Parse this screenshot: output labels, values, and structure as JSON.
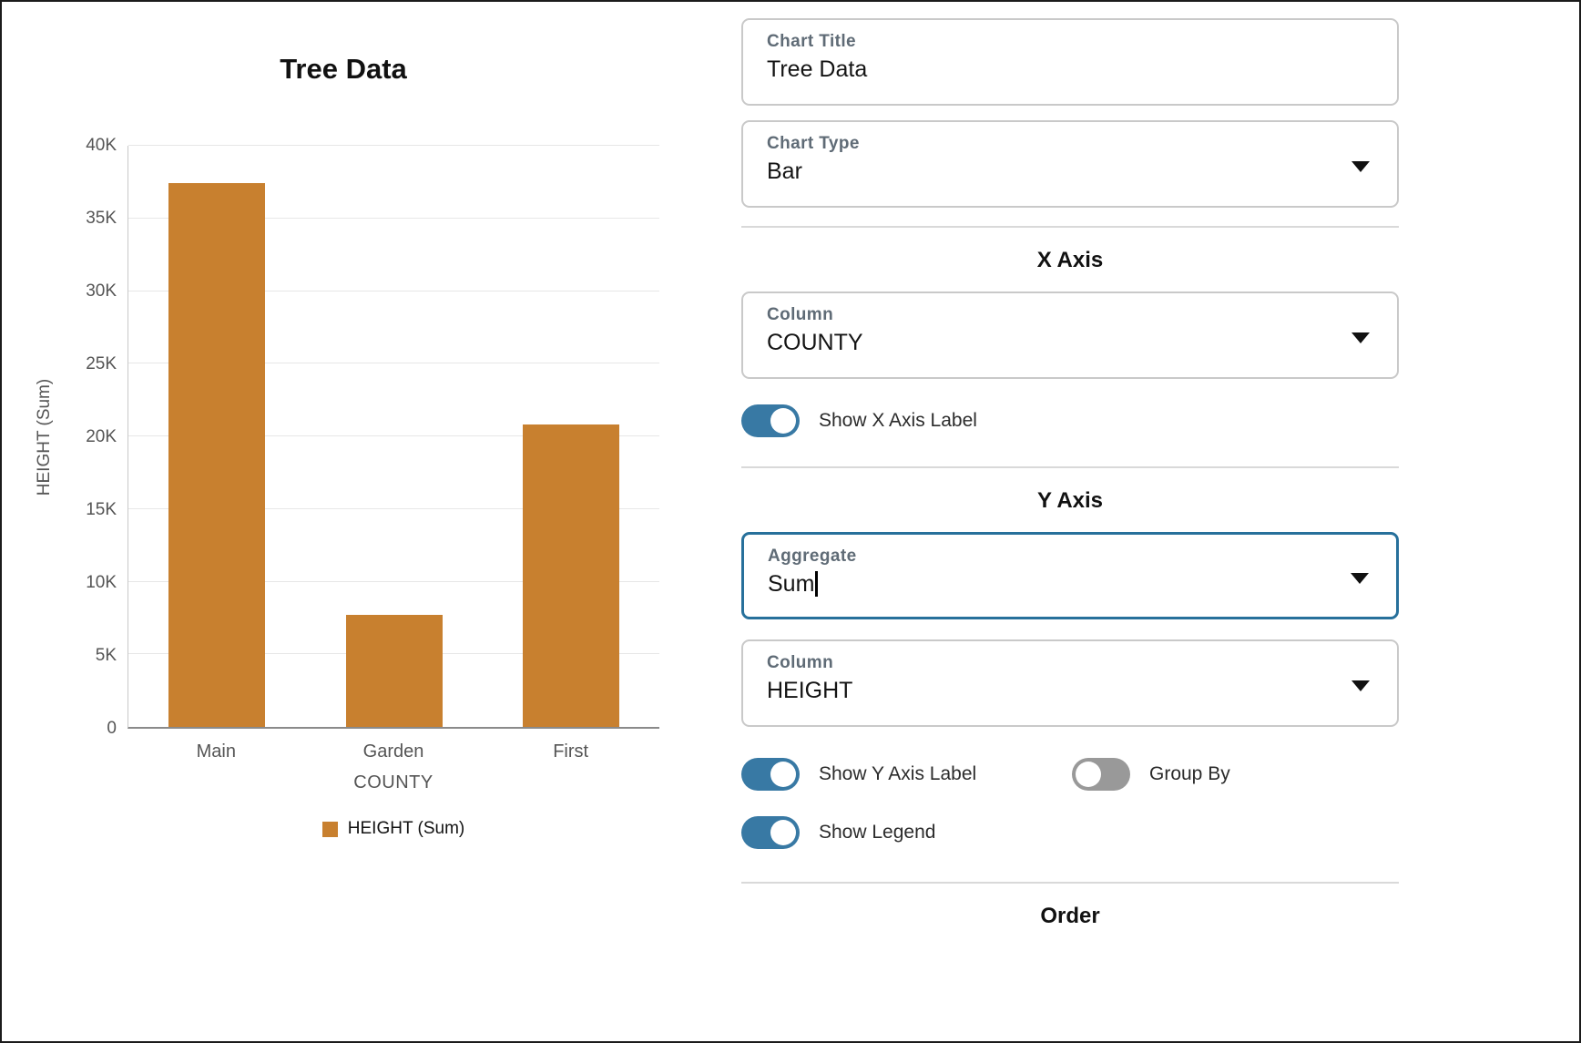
{
  "chart_data": {
    "type": "bar",
    "title": "Tree Data",
    "categories": [
      "Main",
      "Garden",
      "First"
    ],
    "series": [
      {
        "name": "HEIGHT (Sum)",
        "values": [
          37400,
          7700,
          20800
        ]
      }
    ],
    "xlabel": "COUNTY",
    "ylabel": "HEIGHT (Sum)",
    "ylim": [
      0,
      40000
    ],
    "yticks": [
      0,
      5000,
      10000,
      15000,
      20000,
      25000,
      30000,
      35000,
      40000
    ],
    "ytick_labels": [
      "0",
      "5K",
      "10K",
      "15K",
      "20K",
      "25K",
      "30K",
      "35K",
      "40K"
    ],
    "bar_color": "#c8802f",
    "grid": true,
    "legend_position": "bottom"
  },
  "config_panel": {
    "chart_title_field": {
      "label": "Chart Title",
      "value": "Tree Data"
    },
    "chart_type_field": {
      "label": "Chart Type",
      "value": "Bar"
    },
    "x_axis": {
      "heading": "X Axis",
      "column_field": {
        "label": "Column",
        "value": "COUNTY"
      },
      "show_x_axis_label_toggle": {
        "label": "Show X Axis Label",
        "on": true
      }
    },
    "y_axis": {
      "heading": "Y Axis",
      "aggregate_field": {
        "label": "Aggregate",
        "value": "Sum",
        "focused": true
      },
      "column_field": {
        "label": "Column",
        "value": "HEIGHT"
      },
      "show_y_axis_label_toggle": {
        "label": "Show Y Axis Label",
        "on": true
      },
      "group_by_toggle": {
        "label": "Group By",
        "on": false
      },
      "show_legend_toggle": {
        "label": "Show Legend",
        "on": true
      }
    },
    "order": {
      "heading": "Order"
    }
  },
  "colors": {
    "accent_blue": "#3879a4",
    "focus_border": "#27709b",
    "bar_orange": "#c8802f"
  }
}
